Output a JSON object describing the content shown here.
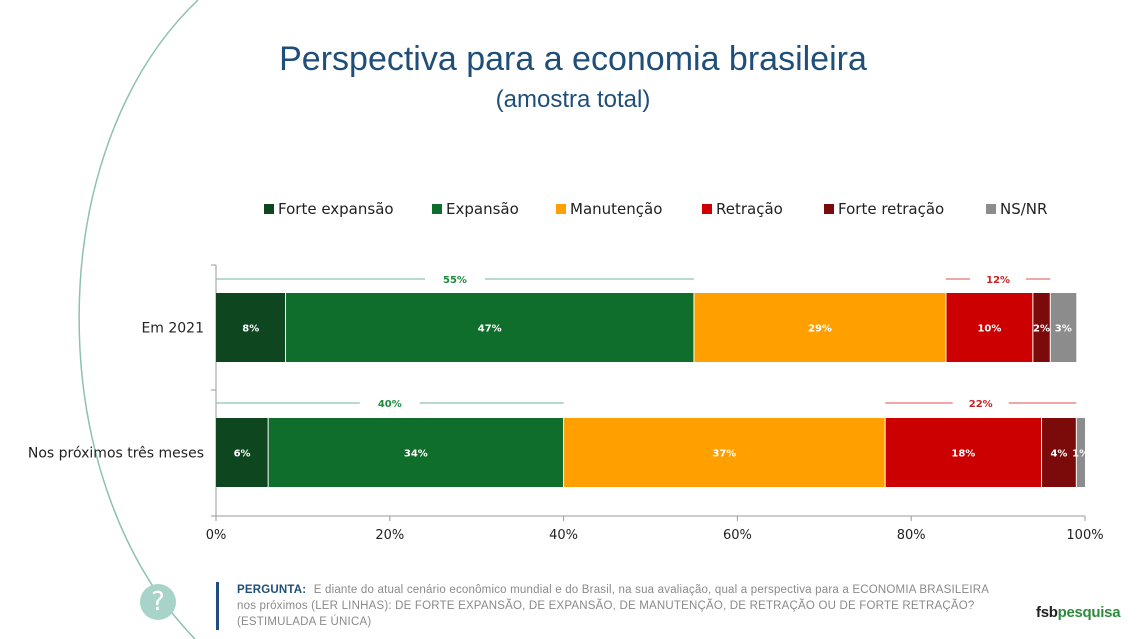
{
  "header": {
    "title": "Perspectiva para a economia brasileira",
    "subtitle": "(amostra total)"
  },
  "legend": {
    "items": [
      {
        "label": "Forte expansão",
        "color": "#0e4620"
      },
      {
        "label": "Expansão",
        "color": "#0f6e2b"
      },
      {
        "label": "Manutenção",
        "color": "#ff9f00"
      },
      {
        "label": "Retração",
        "color": "#cc0000"
      },
      {
        "label": "Forte retração",
        "color": "#7b0a0a"
      },
      {
        "label": "NS/NR",
        "color": "#8c8c8c"
      }
    ]
  },
  "chart_data": {
    "type": "bar",
    "orientation": "horizontal",
    "stacked": true,
    "categories": [
      "Em 2021",
      "Nos próximos três meses"
    ],
    "series": [
      {
        "name": "Forte expansão",
        "values": [
          8,
          6
        ],
        "labels": [
          "8%",
          "6%"
        ],
        "color": "#0e4620"
      },
      {
        "name": "Expansão",
        "values": [
          47,
          34
        ],
        "labels": [
          "47%",
          "34%"
        ],
        "color": "#0f6e2b"
      },
      {
        "name": "Manutenção",
        "values": [
          29,
          37
        ],
        "labels": [
          "29%",
          "37%"
        ],
        "color": "#ff9f00"
      },
      {
        "name": "Retração",
        "values": [
          10,
          18
        ],
        "labels": [
          "10%",
          "18%"
        ],
        "color": "#cc0000"
      },
      {
        "name": "Forte retração",
        "values": [
          2,
          4
        ],
        "labels": [
          "2%",
          "4%"
        ],
        "color": "#7b0a0a"
      },
      {
        "name": "NS/NR",
        "values": [
          3,
          1
        ],
        "labels": [
          "3%",
          "1%"
        ],
        "color": "#8c8c8c"
      }
    ],
    "totals": [
      {
        "positive": 55,
        "positive_label": "55%",
        "negative": 12,
        "negative_label": "12%"
      },
      {
        "positive": 40,
        "positive_label": "40%",
        "negative": 22,
        "negative_label": "22%"
      }
    ],
    "totals_colors": {
      "positive": "#1e8a3c",
      "negative": "#cc2222"
    },
    "xlim": [
      0,
      100
    ],
    "xticks": [
      "0%",
      "20%",
      "40%",
      "60%",
      "80%",
      "100%"
    ],
    "xlabel": "",
    "ylabel": "",
    "legend_position": "top",
    "grid": false
  },
  "footer": {
    "question_label": "PERGUNTA:",
    "question_text": "E diante do atual cenário econômico mundial e do Brasil, na sua avaliação, qual a perspectiva para a ECONOMIA BRASILEIRA nos próximos (LER LINHAS): DE FORTE EXPANSÃO, DE EXPANSÃO, DE MANUTENÇÃO, DE RETRAÇÃO OU DE FORTE RETRAÇÃO? (ESTIMULADA E ÚNICA)",
    "help_symbol": "?",
    "logo_part1": "fsb",
    "logo_part2": "pesquisa"
  }
}
